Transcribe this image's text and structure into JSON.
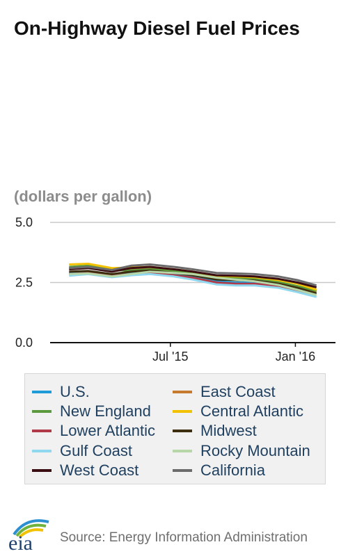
{
  "title": "On-Highway Diesel Fuel Prices",
  "units": "(dollars per gallon)",
  "source": "Source: Energy Information Administration",
  "logo_text": "eia",
  "chart_data": {
    "type": "line",
    "title": "On-Highway Diesel Fuel Prices",
    "ylabel": "(dollars per gallon)",
    "ylim": [
      0,
      5
    ],
    "yticks": [
      {
        "value": 0,
        "label": "0.0"
      },
      {
        "value": 2.5,
        "label": "2.5"
      },
      {
        "value": 5,
        "label": "5.0"
      }
    ],
    "xticks": [
      {
        "x": "2015-07-01",
        "label": "Jul '15"
      },
      {
        "x": "2016-01-01",
        "label": "Jan '16"
      }
    ],
    "x": [
      "2015-02-02",
      "2015-03-02",
      "2015-04-06",
      "2015-05-04",
      "2015-06-01",
      "2015-07-06",
      "2015-08-03",
      "2015-09-07",
      "2015-10-05",
      "2015-11-02",
      "2015-12-07",
      "2016-01-04",
      "2016-02-01"
    ],
    "grid": true,
    "legend_position": "bottom",
    "series": [
      {
        "name": "U.S.",
        "color": "#1f9bd7",
        "values": [
          2.9,
          2.95,
          2.81,
          2.89,
          2.94,
          2.83,
          2.75,
          2.55,
          2.5,
          2.5,
          2.4,
          2.23,
          2.03
        ]
      },
      {
        "name": "East Coast",
        "color": "#c67a2e",
        "values": [
          3.1,
          3.15,
          3.0,
          3.05,
          3.1,
          3.0,
          2.9,
          2.7,
          2.65,
          2.6,
          2.5,
          2.35,
          2.12
        ]
      },
      {
        "name": "New England",
        "color": "#5a9a3c",
        "values": [
          3.15,
          3.2,
          3.02,
          3.0,
          3.05,
          2.98,
          2.9,
          2.72,
          2.7,
          2.65,
          2.52,
          2.35,
          2.15
        ]
      },
      {
        "name": "Central Atlantic",
        "color": "#f2c100",
        "values": [
          3.25,
          3.28,
          3.1,
          3.12,
          3.15,
          3.05,
          2.95,
          2.78,
          2.75,
          2.72,
          2.6,
          2.45,
          2.2
        ]
      },
      {
        "name": "Lower Atlantic",
        "color": "#b03a48",
        "values": [
          2.85,
          2.9,
          2.78,
          2.85,
          2.9,
          2.8,
          2.7,
          2.5,
          2.45,
          2.45,
          2.35,
          2.18,
          1.98
        ]
      },
      {
        "name": "Midwest",
        "color": "#3d2e10",
        "values": [
          2.95,
          2.98,
          2.85,
          2.95,
          3.0,
          2.9,
          2.8,
          2.62,
          2.6,
          2.58,
          2.45,
          2.28,
          2.05
        ]
      },
      {
        "name": "Gulf Coast",
        "color": "#8fd8f0",
        "values": [
          2.78,
          2.85,
          2.72,
          2.8,
          2.85,
          2.75,
          2.62,
          2.42,
          2.38,
          2.38,
          2.28,
          2.1,
          1.9
        ]
      },
      {
        "name": "Rocky Mountain",
        "color": "#b8d7a8",
        "values": [
          2.85,
          2.88,
          2.75,
          2.85,
          2.95,
          2.9,
          2.85,
          2.7,
          2.62,
          2.55,
          2.4,
          2.2,
          1.98
        ]
      },
      {
        "name": "West Coast",
        "color": "#3a0d12",
        "values": [
          3.05,
          3.1,
          2.95,
          3.1,
          3.15,
          3.05,
          2.95,
          2.8,
          2.78,
          2.75,
          2.65,
          2.5,
          2.3
        ]
      },
      {
        "name": "California",
        "color": "#6b6b6b",
        "values": [
          3.1,
          3.15,
          3.02,
          3.2,
          3.25,
          3.15,
          3.05,
          2.9,
          2.88,
          2.85,
          2.75,
          2.6,
          2.38
        ]
      }
    ]
  }
}
